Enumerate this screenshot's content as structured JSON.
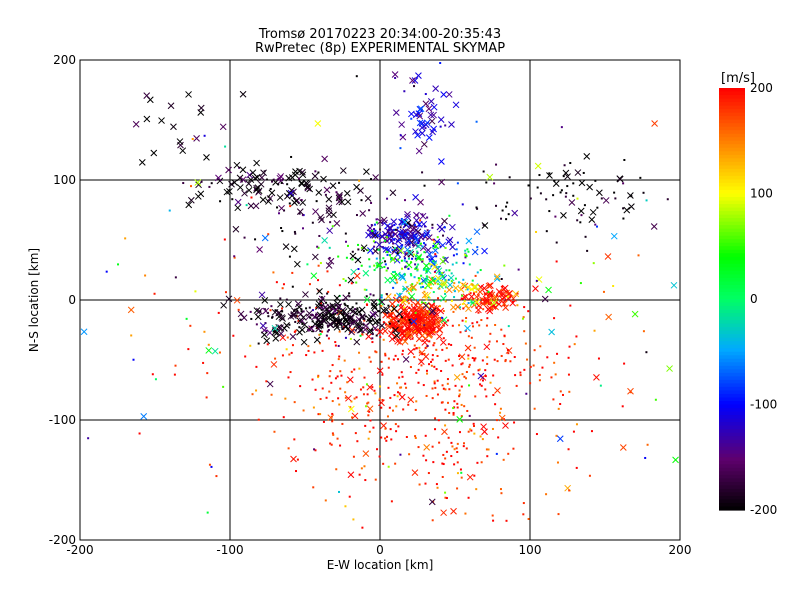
{
  "chart_data": {
    "type": "scatter",
    "title": "Tromsø 20170223 20:34:00-20:35:43",
    "subtitle": "RwPretec (8p) EXPERIMENTAL SKYMAP",
    "xlabel": "E-W location [km]",
    "ylabel": "N-S location [km]",
    "xlim": [
      -200,
      200
    ],
    "ylim": [
      -200,
      200
    ],
    "x_ticks": [
      -200,
      -100,
      0,
      100,
      200
    ],
    "y_ticks": [
      -200,
      -100,
      0,
      100,
      200
    ],
    "x_tick_labels": [
      "-200",
      "-100",
      "0",
      "100",
      "200"
    ],
    "y_tick_labels": [
      "-200",
      "-100",
      "0",
      "100",
      "200"
    ],
    "grid": true,
    "markers": [
      "x",
      "dot"
    ],
    "colorbar": {
      "unit_label": "[m/s]",
      "range": [
        -200,
        200
      ],
      "ticks": [
        -200,
        -100,
        0,
        100,
        200
      ],
      "tick_labels": [
        "-200",
        "-100",
        "0",
        "100",
        "200"
      ],
      "colormap": "rainbow (black-purple-blue-cyan-green-yellow-red)"
    },
    "clusters": [
      {
        "x": 22,
        "y": -18,
        "sx": 10,
        "sy": 8,
        "vel": 195,
        "n": 240,
        "xfrac": 0.85
      },
      {
        "x": 72,
        "y": 2,
        "sx": 9,
        "sy": 6,
        "vel": 190,
        "n": 80,
        "xfrac": 0.7
      },
      {
        "x": 45,
        "y": -55,
        "sx": 45,
        "sy": 30,
        "vel": 190,
        "n": 260,
        "xfrac": 0.05
      },
      {
        "x": -20,
        "y": -50,
        "sx": 55,
        "sy": 40,
        "vel": 185,
        "n": 220,
        "xfrac": 0.04
      },
      {
        "x": 40,
        "y": -130,
        "sx": 55,
        "sy": 35,
        "vel": 185,
        "n": 120,
        "xfrac": 0.08
      },
      {
        "x": 15,
        "y": 55,
        "sx": 10,
        "sy": 8,
        "vel": -130,
        "n": 130,
        "xfrac": 0.7
      },
      {
        "x": 30,
        "y": 40,
        "sx": 18,
        "sy": 12,
        "vel": -100,
        "n": 90,
        "xfrac": 0.3
      },
      {
        "x": 30,
        "y": 160,
        "sx": 10,
        "sy": 20,
        "vel": -120,
        "n": 55,
        "xfrac": 0.6
      },
      {
        "x": 30,
        "y": 20,
        "sx": 20,
        "sy": 12,
        "vel": -20,
        "n": 110,
        "xfrac": 0.3
      },
      {
        "x": 15,
        "y": 30,
        "sx": 25,
        "sy": 15,
        "vel": 50,
        "n": 90,
        "xfrac": 0.2
      },
      {
        "x": 40,
        "y": 5,
        "sx": 20,
        "sy": 10,
        "vel": 120,
        "n": 60,
        "xfrac": 0.3
      },
      {
        "x": -25,
        "y": -15,
        "sx": 20,
        "sy": 8,
        "vel": -195,
        "n": 200,
        "xfrac": 0.5
      },
      {
        "x": -60,
        "y": -15,
        "sx": 18,
        "sy": 10,
        "vel": -195,
        "n": 90,
        "xfrac": 0.6
      },
      {
        "x": -70,
        "y": 95,
        "sx": 28,
        "sy": 10,
        "vel": -195,
        "n": 110,
        "xfrac": 0.7
      },
      {
        "x": -25,
        "y": 60,
        "sx": 30,
        "sy": 25,
        "vel": -180,
        "n": 70,
        "xfrac": 0.5
      },
      {
        "x": 130,
        "y": 85,
        "sx": 40,
        "sy": 15,
        "vel": -195,
        "n": 90,
        "xfrac": 0.25
      },
      {
        "x": -140,
        "y": 150,
        "sx": 15,
        "sy": 20,
        "vel": -195,
        "n": 18,
        "xfrac": 0.8
      },
      {
        "x": 0,
        "y": 0,
        "sx": 110,
        "sy": 100,
        "vel": 0,
        "n": 160,
        "xfrac": 0.3,
        "rand_vel": true
      }
    ]
  }
}
